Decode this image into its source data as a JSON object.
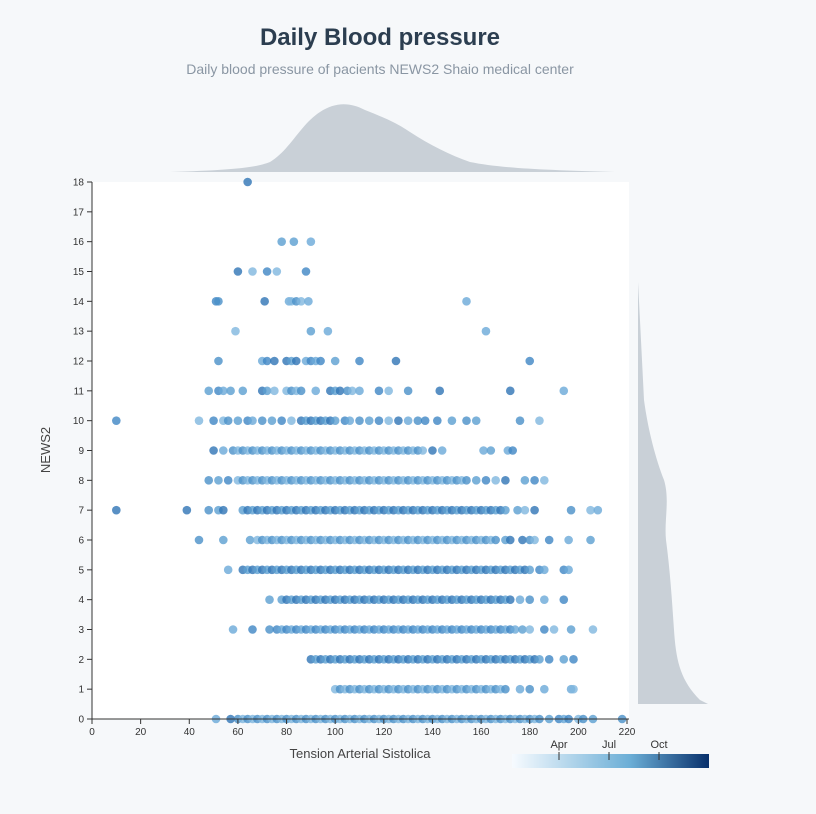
{
  "page": {
    "title": "Daily Blood pressure",
    "subtitle": "Daily blood pressure of pacients NEWS2 Shaio medical center"
  },
  "chart_data": {
    "type": "scatter",
    "title": "Daily Blood pressure",
    "subtitle": "Daily blood pressure of pacients NEWS2 Shaio medical center",
    "xlabel": "Tension Arterial Sistolica",
    "ylabel": "NEWS2",
    "xlim": [
      0,
      220
    ],
    "ylim": [
      0,
      18
    ],
    "x_ticks": [
      0,
      20,
      40,
      60,
      80,
      100,
      120,
      140,
      160,
      180,
      200,
      220
    ],
    "y_ticks": [
      0,
      1,
      2,
      3,
      4,
      5,
      6,
      7,
      8,
      9,
      10,
      11,
      12,
      13,
      14,
      15,
      16,
      17,
      18
    ],
    "grid": false,
    "color_legend": {
      "position": "bottom-right",
      "ticks": [
        "Apr",
        "Jul",
        "Oct"
      ],
      "colors": [
        "#f7fbff",
        "#6baed6",
        "#08306b"
      ]
    },
    "point_color": "#4a90c8",
    "marginal_color": "#c9d0d7",
    "marginals": [
      "top: density of Tension Arterial Sistolica",
      "right: density of NEWS2"
    ],
    "rows": [
      {
        "y": 18,
        "xs": [
          64
        ]
      },
      {
        "y": 16,
        "xs": [
          78,
          83,
          90
        ]
      },
      {
        "y": 15,
        "xs": [
          60,
          66,
          72,
          76,
          88
        ]
      },
      {
        "y": 14,
        "xs": [
          51,
          52,
          71,
          81,
          82,
          84,
          86,
          89,
          154
        ]
      },
      {
        "y": 13,
        "xs": [
          59,
          90,
          97,
          162
        ]
      },
      {
        "y": 12,
        "xs": [
          52,
          70,
          72,
          75,
          80,
          82,
          84,
          88,
          90,
          92,
          94,
          100,
          110,
          125,
          180
        ]
      },
      {
        "y": 11,
        "xs": [
          48,
          52,
          54,
          57,
          62,
          70,
          72,
          75,
          80,
          82,
          84,
          86,
          92,
          98,
          100,
          102,
          105,
          107,
          110,
          118,
          122,
          130,
          143,
          172,
          194
        ]
      },
      {
        "y": 10,
        "xs": [
          10,
          44,
          50,
          54,
          56,
          60,
          64,
          66,
          70,
          74,
          78,
          82,
          86,
          88,
          90,
          92,
          94,
          96,
          98,
          100,
          104,
          106,
          110,
          114,
          118,
          122,
          126,
          130,
          134,
          137,
          142,
          148,
          154,
          158,
          176,
          184
        ]
      },
      {
        "y": 9,
        "xs": [
          50,
          54,
          58,
          60,
          62,
          64,
          66,
          68,
          70,
          72,
          74,
          76,
          78,
          80,
          82,
          84,
          86,
          88,
          90,
          92,
          94,
          96,
          98,
          100,
          102,
          104,
          106,
          108,
          110,
          112,
          114,
          116,
          118,
          120,
          122,
          124,
          126,
          128,
          130,
          132,
          134,
          136,
          140,
          144,
          161,
          164,
          171,
          173
        ]
      },
      {
        "y": 8,
        "xs": [
          48,
          52,
          56,
          60,
          62,
          64,
          66,
          68,
          70,
          72,
          74,
          76,
          78,
          80,
          82,
          84,
          86,
          88,
          90,
          92,
          94,
          96,
          98,
          100,
          102,
          104,
          106,
          108,
          110,
          112,
          114,
          116,
          118,
          120,
          122,
          124,
          126,
          128,
          130,
          132,
          134,
          136,
          138,
          140,
          142,
          144,
          146,
          148,
          150,
          152,
          154,
          158,
          162,
          166,
          170,
          178,
          182,
          186
        ]
      },
      {
        "y": 7,
        "xs": [
          10,
          39,
          48,
          52,
          54,
          62,
          64,
          66,
          68,
          70,
          72,
          74,
          76,
          78,
          80,
          82,
          84,
          86,
          88,
          90,
          92,
          94,
          96,
          98,
          100,
          102,
          104,
          106,
          108,
          110,
          112,
          114,
          116,
          118,
          120,
          122,
          124,
          126,
          128,
          130,
          132,
          134,
          136,
          138,
          140,
          142,
          144,
          146,
          148,
          150,
          152,
          154,
          156,
          158,
          160,
          162,
          164,
          166,
          168,
          170,
          175,
          178,
          182,
          197,
          205,
          208
        ]
      },
      {
        "y": 6,
        "xs": [
          44,
          54,
          65,
          68,
          70,
          72,
          74,
          76,
          78,
          80,
          82,
          84,
          86,
          88,
          90,
          92,
          94,
          96,
          98,
          100,
          102,
          104,
          106,
          108,
          110,
          112,
          114,
          116,
          118,
          120,
          122,
          124,
          126,
          128,
          130,
          132,
          134,
          136,
          138,
          140,
          142,
          144,
          146,
          148,
          150,
          152,
          154,
          156,
          158,
          160,
          162,
          164,
          166,
          170,
          172,
          177,
          180,
          182,
          188,
          196,
          205
        ]
      },
      {
        "y": 5,
        "xs": [
          56,
          62,
          64,
          66,
          68,
          70,
          72,
          74,
          76,
          78,
          80,
          82,
          84,
          86,
          88,
          90,
          92,
          94,
          96,
          98,
          100,
          102,
          104,
          106,
          108,
          110,
          112,
          114,
          116,
          118,
          120,
          122,
          124,
          126,
          128,
          130,
          132,
          134,
          136,
          138,
          140,
          142,
          144,
          146,
          148,
          150,
          152,
          154,
          156,
          158,
          160,
          162,
          164,
          166,
          168,
          170,
          172,
          174,
          176,
          178,
          180,
          184,
          186,
          194,
          196
        ]
      },
      {
        "y": 4,
        "xs": [
          73,
          78,
          80,
          82,
          84,
          86,
          88,
          90,
          92,
          94,
          96,
          98,
          100,
          102,
          104,
          106,
          108,
          110,
          112,
          114,
          116,
          118,
          120,
          122,
          124,
          126,
          128,
          130,
          132,
          134,
          136,
          138,
          140,
          142,
          144,
          146,
          148,
          150,
          152,
          154,
          156,
          158,
          160,
          162,
          164,
          166,
          168,
          170,
          172,
          176,
          180,
          186,
          194
        ]
      },
      {
        "y": 3,
        "xs": [
          58,
          66,
          73,
          76,
          78,
          80,
          82,
          84,
          86,
          88,
          90,
          92,
          94,
          96,
          98,
          100,
          102,
          104,
          106,
          108,
          110,
          112,
          114,
          116,
          118,
          120,
          122,
          124,
          126,
          128,
          130,
          132,
          134,
          136,
          138,
          140,
          142,
          144,
          146,
          148,
          150,
          152,
          154,
          156,
          158,
          160,
          162,
          164,
          166,
          168,
          170,
          172,
          174,
          177,
          180,
          186,
          190,
          197,
          206
        ]
      },
      {
        "y": 2,
        "xs": [
          90,
          92,
          94,
          96,
          98,
          100,
          102,
          104,
          106,
          108,
          110,
          112,
          114,
          116,
          118,
          120,
          122,
          124,
          126,
          128,
          130,
          132,
          134,
          136,
          138,
          140,
          142,
          144,
          146,
          148,
          150,
          152,
          154,
          156,
          158,
          160,
          162,
          164,
          166,
          168,
          170,
          172,
          174,
          176,
          178,
          180,
          182,
          184,
          188,
          194,
          198
        ]
      },
      {
        "y": 1,
        "xs": [
          100,
          102,
          104,
          106,
          108,
          110,
          112,
          114,
          116,
          118,
          120,
          122,
          124,
          126,
          128,
          130,
          132,
          134,
          136,
          138,
          140,
          142,
          144,
          146,
          148,
          150,
          152,
          154,
          156,
          158,
          160,
          162,
          164,
          166,
          168,
          170,
          176,
          180,
          186,
          197,
          198
        ]
      },
      {
        "y": 0,
        "xs": [
          51,
          57,
          60,
          62,
          64,
          66,
          68,
          70,
          72,
          74,
          76,
          78,
          80,
          82,
          84,
          86,
          88,
          90,
          92,
          94,
          96,
          98,
          100,
          102,
          104,
          106,
          108,
          110,
          112,
          114,
          116,
          118,
          120,
          122,
          124,
          126,
          128,
          130,
          132,
          134,
          136,
          138,
          140,
          142,
          144,
          146,
          148,
          150,
          152,
          154,
          156,
          158,
          160,
          162,
          164,
          166,
          168,
          170,
          172,
          174,
          176,
          178,
          180,
          182,
          184,
          188,
          192,
          194,
          196,
          200,
          202,
          206,
          218
        ]
      }
    ]
  }
}
